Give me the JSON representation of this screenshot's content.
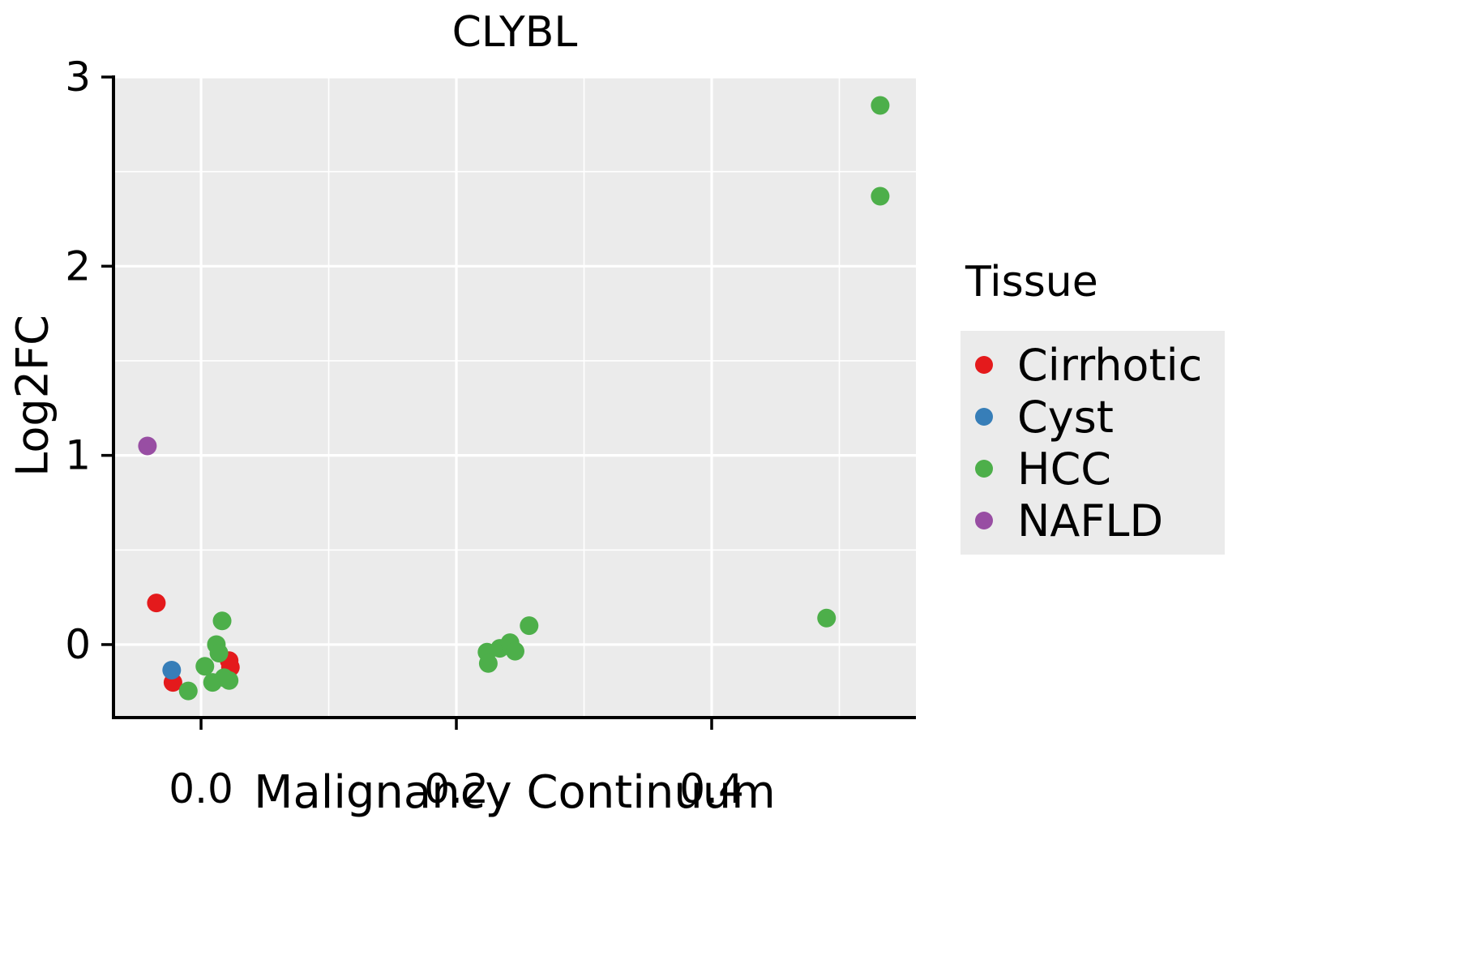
{
  "chart_data": {
    "type": "scatter",
    "title": "CLYBL",
    "xlabel": "Malignancy Continuum",
    "ylabel": "Log2FC",
    "xlim": [
      -0.0686,
      0.56
    ],
    "ylim": [
      -0.386,
      3.0
    ],
    "xticks": [
      0.0,
      0.2,
      0.4
    ],
    "xtick_labels": [
      "0.0",
      "0.2",
      "0.4"
    ],
    "yticks": [
      0,
      1,
      2,
      3
    ],
    "ytick_labels": [
      "0",
      "1",
      "2",
      "3"
    ],
    "xminor": [
      0.1,
      0.3,
      0.5
    ],
    "yminor": [
      0.5,
      1.5,
      2.5
    ],
    "panel_bg": "#EBEBEB",
    "grid_color": "#FFFFFF",
    "grid": "on",
    "legend_title": "Tissue",
    "legend_position": "right",
    "series": [
      {
        "name": "Cirrhotic",
        "color": "#E41A1C",
        "points": [
          [
            -0.035,
            0.22
          ],
          [
            -0.022,
            -0.2
          ],
          [
            0.022,
            -0.085
          ],
          [
            0.023,
            -0.12
          ]
        ]
      },
      {
        "name": "Cyst",
        "color": "#377EB8",
        "points": [
          [
            -0.023,
            -0.135
          ]
        ]
      },
      {
        "name": "HCC",
        "color": "#4DAF4A",
        "points": [
          [
            -0.01,
            -0.245
          ],
          [
            0.003,
            -0.115
          ],
          [
            0.009,
            -0.2
          ],
          [
            0.012,
            0.0
          ],
          [
            0.014,
            -0.045
          ],
          [
            0.0165,
            0.125
          ],
          [
            0.018,
            -0.175
          ],
          [
            0.022,
            -0.19
          ],
          [
            0.224,
            -0.04
          ],
          [
            0.225,
            -0.1
          ],
          [
            0.234,
            -0.02
          ],
          [
            0.242,
            0.01
          ],
          [
            0.246,
            -0.035
          ],
          [
            0.257,
            0.1
          ],
          [
            0.49,
            0.14
          ],
          [
            0.532,
            2.85
          ],
          [
            0.532,
            2.37
          ]
        ]
      },
      {
        "name": "NAFLD",
        "color": "#984EA3",
        "points": [
          [
            -0.042,
            1.05
          ]
        ]
      }
    ]
  }
}
